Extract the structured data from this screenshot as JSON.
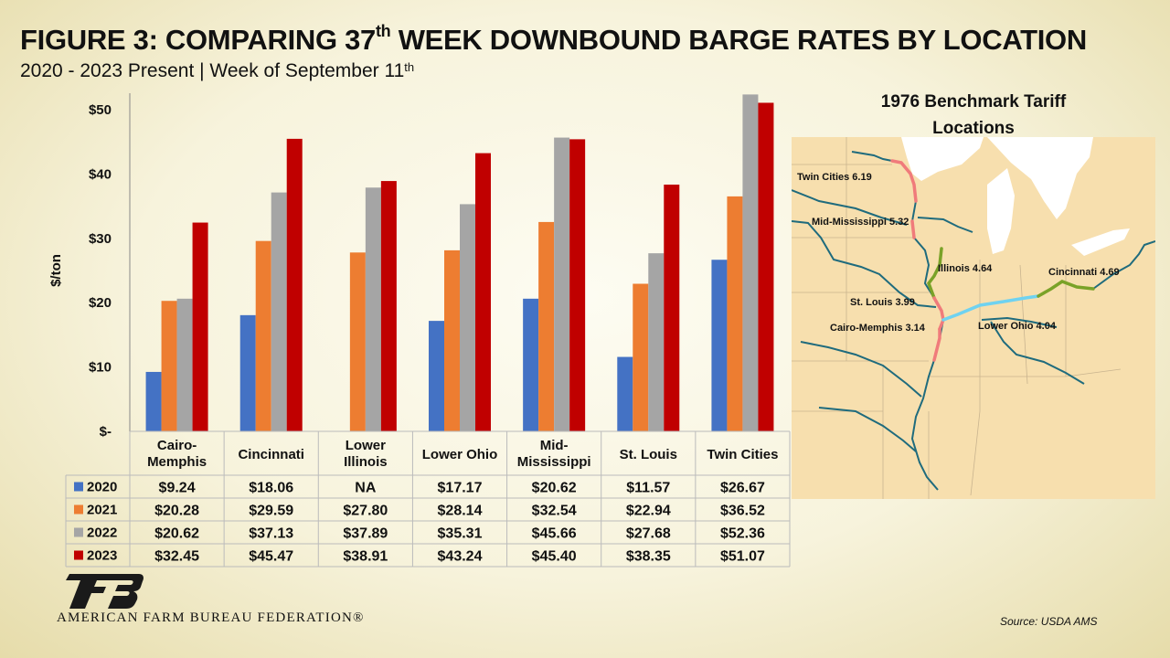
{
  "title": {
    "prefix": "FIGURE 3: COMPARING 37",
    "sup": "th",
    "suffix": " WEEK DOWNBOUND BARGE RATES BY LOCATION"
  },
  "subtitle": {
    "text": "2020 - 2023 Present | Week of September 11",
    "sup": "th"
  },
  "chart_data": {
    "type": "bar",
    "ylabel": "$/ton",
    "ylim": [
      0,
      50
    ],
    "yticks": [
      "$-",
      "$10",
      "$20",
      "$30",
      "$40",
      "$50"
    ],
    "grid": false,
    "legend": "data-table",
    "categories": [
      [
        "Cairo-",
        "Memphis"
      ],
      [
        "Cincinnati"
      ],
      [
        "Lower",
        "Illinois"
      ],
      [
        "Lower Ohio"
      ],
      [
        "Mid-",
        "Mississippi"
      ],
      [
        "St. Louis"
      ],
      [
        "Twin Cities"
      ]
    ],
    "series": [
      {
        "name": "2020",
        "color": "#4472c4",
        "values": [
          9.24,
          18.06,
          null,
          17.17,
          20.62,
          11.57,
          26.67
        ],
        "labels": [
          "$9.24",
          "$18.06",
          "NA",
          "$17.17",
          "$20.62",
          "$11.57",
          "$26.67"
        ]
      },
      {
        "name": "2021",
        "color": "#ed7d31",
        "values": [
          20.28,
          29.59,
          27.8,
          28.14,
          32.54,
          22.94,
          36.52
        ],
        "labels": [
          "$20.28",
          "$29.59",
          "$27.80",
          "$28.14",
          "$32.54",
          "$22.94",
          "$36.52"
        ]
      },
      {
        "name": "2022",
        "color": "#a5a5a5",
        "values": [
          20.62,
          37.13,
          37.89,
          35.31,
          45.66,
          27.68,
          52.36
        ],
        "labels": [
          "$20.62",
          "$37.13",
          "$37.89",
          "$35.31",
          "$45.66",
          "$27.68",
          "$52.36"
        ]
      },
      {
        "name": "2023",
        "color": "#c00000",
        "values": [
          32.45,
          45.47,
          38.91,
          43.24,
          45.4,
          38.35,
          51.07
        ],
        "labels": [
          "$32.45",
          "$45.47",
          "$38.91",
          "$43.24",
          "$45.40",
          "$38.35",
          "$51.07"
        ]
      }
    ]
  },
  "map": {
    "title": "1976 Benchmark Tariff Locations",
    "labels": {
      "twin_cities": "Twin Cities 6.19",
      "mid_mississippi": "Mid-Mississippi 5.32",
      "illinois": "Illinois 4.64",
      "cincinnati": "Cincinnati 4.69",
      "st_louis": "St. Louis 3.99",
      "cairo_memphis": "Cairo-Memphis 3.14",
      "lower_ohio": "Lower Ohio 4.04"
    },
    "colors": {
      "land": "#f7dfae",
      "river": "#1f6b7d",
      "lake": "#ffffff",
      "segment_red": "#f07b7b",
      "segment_green": "#7aa228",
      "segment_cyan": "#6fd2f0"
    }
  },
  "footer": {
    "organization": "AMERICAN FARM BUREAU FEDERATION®",
    "source": "Source: USDA AMS"
  }
}
